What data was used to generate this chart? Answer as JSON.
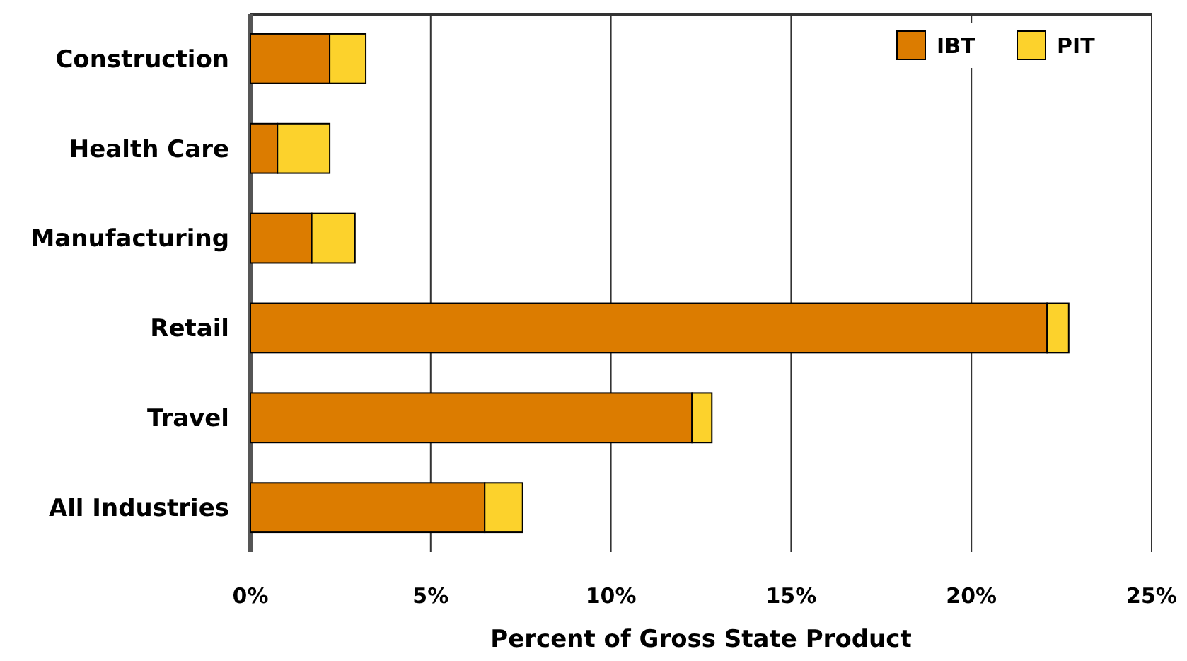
{
  "chart_data": {
    "type": "bar",
    "orientation": "horizontal",
    "stacked": true,
    "categories": [
      "Construction",
      "Health Care",
      "Manufacturing",
      "Retail",
      "Travel",
      "All Industries"
    ],
    "series": [
      {
        "name": "IBT",
        "color": "#dc7c00",
        "values": [
          2.2,
          0.75,
          1.7,
          22.1,
          12.25,
          6.5
        ]
      },
      {
        "name": "PIT",
        "color": "#fcd22c",
        "values": [
          1.0,
          1.45,
          1.2,
          0.6,
          0.55,
          1.05
        ]
      }
    ],
    "xlabel": "Percent of Gross State Product",
    "xlim": [
      0,
      25
    ],
    "xticks": [
      {
        "value": 0,
        "label": "0%"
      },
      {
        "value": 5,
        "label": "5%"
      },
      {
        "value": 10,
        "label": "10%"
      },
      {
        "value": 15,
        "label": "15%"
      },
      {
        "value": 20,
        "label": "20%"
      },
      {
        "value": 25,
        "label": "25%"
      }
    ],
    "grid": "x",
    "legend": "top right"
  }
}
